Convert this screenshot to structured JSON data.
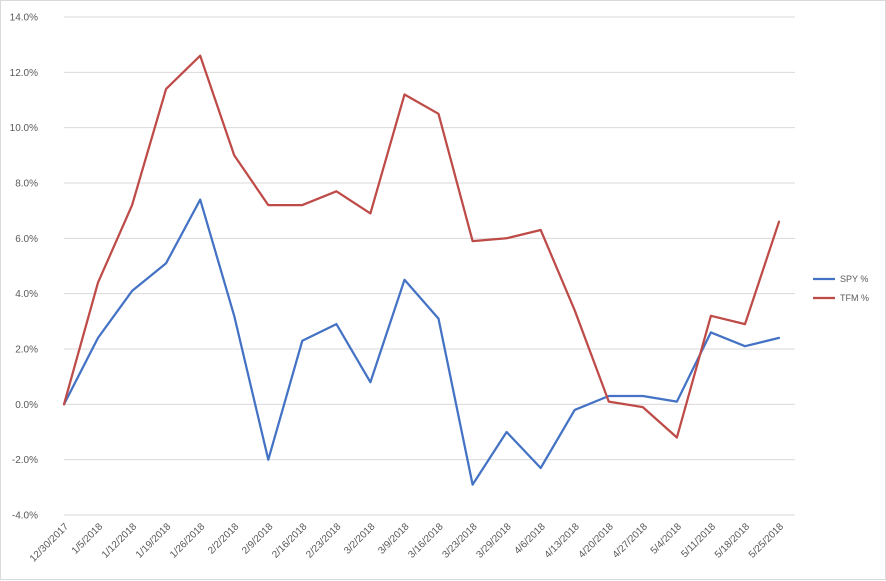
{
  "chart_data": {
    "type": "line",
    "title": "",
    "xlabel": "",
    "ylabel": "",
    "ylim": [
      -0.04,
      0.14
    ],
    "yticks": [
      -0.04,
      -0.02,
      0.0,
      0.02,
      0.04,
      0.06,
      0.08,
      0.1,
      0.12,
      0.14
    ],
    "ytick_labels": [
      "-4.0%",
      "-2.0%",
      "0.0%",
      "2.0%",
      "4.0%",
      "6.0%",
      "8.0%",
      "10.0%",
      "12.0%",
      "14.0%"
    ],
    "grid": true,
    "legend": "right",
    "categories": [
      "12/30/2017",
      "1/5/2018",
      "1/12/2018",
      "1/19/2018",
      "1/26/2018",
      "2/2/2018",
      "2/9/2018",
      "2/16/2018",
      "2/23/2018",
      "3/2/2018",
      "3/9/2018",
      "3/16/2018",
      "3/23/2018",
      "3/29/2018",
      "4/6/2018",
      "4/13/2018",
      "4/20/2018",
      "4/27/2018",
      "5/4/2018",
      "5/11/2018",
      "5/18/2018",
      "5/25/2018"
    ],
    "series": [
      {
        "name": "SPY %",
        "color": "#4472c4",
        "values": [
          0.0,
          0.024,
          0.041,
          0.051,
          0.074,
          0.032,
          -0.02,
          0.023,
          0.029,
          0.008,
          0.045,
          0.031,
          -0.029,
          -0.01,
          -0.023,
          -0.002,
          0.003,
          0.003,
          0.001,
          0.026,
          0.021,
          0.024
        ]
      },
      {
        "name": "TFM %",
        "color": "#be4b48",
        "values": [
          0.0,
          0.044,
          0.072,
          0.114,
          0.126,
          0.09,
          0.072,
          0.072,
          0.077,
          0.069,
          0.112,
          0.105,
          0.059,
          0.06,
          0.063,
          0.034,
          0.001,
          -0.001,
          -0.012,
          0.032,
          0.029,
          0.066
        ]
      }
    ]
  }
}
